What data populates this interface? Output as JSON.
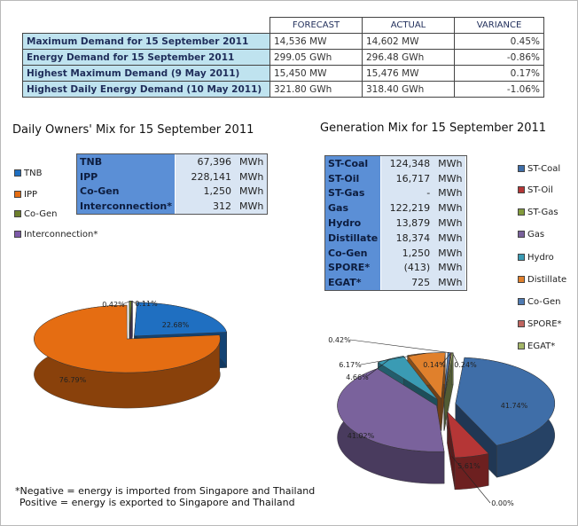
{
  "summary": {
    "headers": [
      "",
      "FORECAST",
      "ACTUAL",
      "VARIANCE"
    ],
    "rows": [
      {
        "label": "Maximum Demand for 15 September 2011",
        "forecast": "14,536 MW",
        "actual": "14,602 MW",
        "variance": "0.45%"
      },
      {
        "label": "Energy Demand for 15 September 2011",
        "forecast": "299.05 GWh",
        "actual": "296.48 GWh",
        "variance": "-0.86%"
      },
      {
        "label": "Highest Maximum Demand (9 May 2011)",
        "forecast": "15,450 MW",
        "actual": "15,476 MW",
        "variance": "0.17%"
      },
      {
        "label": "Highest Daily Energy Demand (10 May 2011)",
        "forecast": "321.80 GWh",
        "actual": "318.40 GWh",
        "variance": "-1.06%"
      }
    ]
  },
  "owners_title": "Daily Owners' Mix for 15 September 2011",
  "generation_title": "Generation Mix for 15 September 2011",
  "owners_table": [
    {
      "name": "TNB",
      "value": "67,396",
      "unit": "MWh"
    },
    {
      "name": "IPP",
      "value": "228,141",
      "unit": "MWh"
    },
    {
      "name": "Co-Gen",
      "value": "1,250",
      "unit": "MWh"
    },
    {
      "name": "Interconnection*",
      "value": "312",
      "unit": "MWh"
    }
  ],
  "generation_table": [
    {
      "name": "ST-Coal",
      "value": "124,348",
      "unit": "MWh"
    },
    {
      "name": "ST-Oil",
      "value": "16,717",
      "unit": "MWh"
    },
    {
      "name": "ST-Gas",
      "value": "-",
      "unit": "MWh"
    },
    {
      "name": "Gas",
      "value": "122,219",
      "unit": "MWh"
    },
    {
      "name": "Hydro",
      "value": "13,879",
      "unit": "MWh"
    },
    {
      "name": "Distillate",
      "value": "18,374",
      "unit": "MWh"
    },
    {
      "name": "Co-Gen",
      "value": "1,250",
      "unit": "MWh"
    },
    {
      "name": "SPORE*",
      "value": "(413)",
      "unit": "MWh"
    },
    {
      "name": "EGAT*",
      "value": "725",
      "unit": "MWh"
    }
  ],
  "note": {
    "line1": "*Negative = energy is imported from Singapore and Thailand",
    "line2": "Positive = energy is exported to Singapore and Thailand"
  },
  "chart_data": [
    {
      "type": "pie",
      "title": "Daily Owners' Mix for 15 September 2011",
      "legend_position": "left",
      "slices": [
        {
          "name": "TNB",
          "value": 22.68,
          "label": "22.68%",
          "color": "#1f6fc1"
        },
        {
          "name": "IPP",
          "value": 76.79,
          "label": "76.79%",
          "color": "#e56d12"
        },
        {
          "name": "Co-Gen",
          "value": 0.42,
          "label": "0.42%",
          "color": "#6e7f2c"
        },
        {
          "name": "Interconnection*",
          "value": 0.11,
          "label": "0.11%",
          "color": "#7d5aa8"
        }
      ]
    },
    {
      "type": "pie",
      "title": "Generation Mix for 15 September 2011",
      "legend_position": "right",
      "slices": [
        {
          "name": "ST-Coal",
          "value": 41.74,
          "label": "41.74%",
          "color": "#3f6ea8"
        },
        {
          "name": "ST-Oil",
          "value": 5.61,
          "label": "5.61%",
          "color": "#b53636"
        },
        {
          "name": "ST-Gas",
          "value": 0.0,
          "label": "0.00%",
          "color": "#839b3c"
        },
        {
          "name": "Gas",
          "value": 41.02,
          "label": "41.02%",
          "color": "#7a629c"
        },
        {
          "name": "Hydro",
          "value": 4.66,
          "label": "4.66%",
          "color": "#3a9bb4"
        },
        {
          "name": "Distillate",
          "value": 6.17,
          "label": "6.17%",
          "color": "#e0802c"
        },
        {
          "name": "Co-Gen",
          "value": 0.42,
          "label": "0.42%",
          "color": "#4f7bb3"
        },
        {
          "name": "SPORE*",
          "value": 0.14,
          "label": "0.14%",
          "color": "#c06560"
        },
        {
          "name": "EGAT*",
          "value": 0.24,
          "label": "0.24%",
          "color": "#a3b568"
        }
      ]
    }
  ]
}
